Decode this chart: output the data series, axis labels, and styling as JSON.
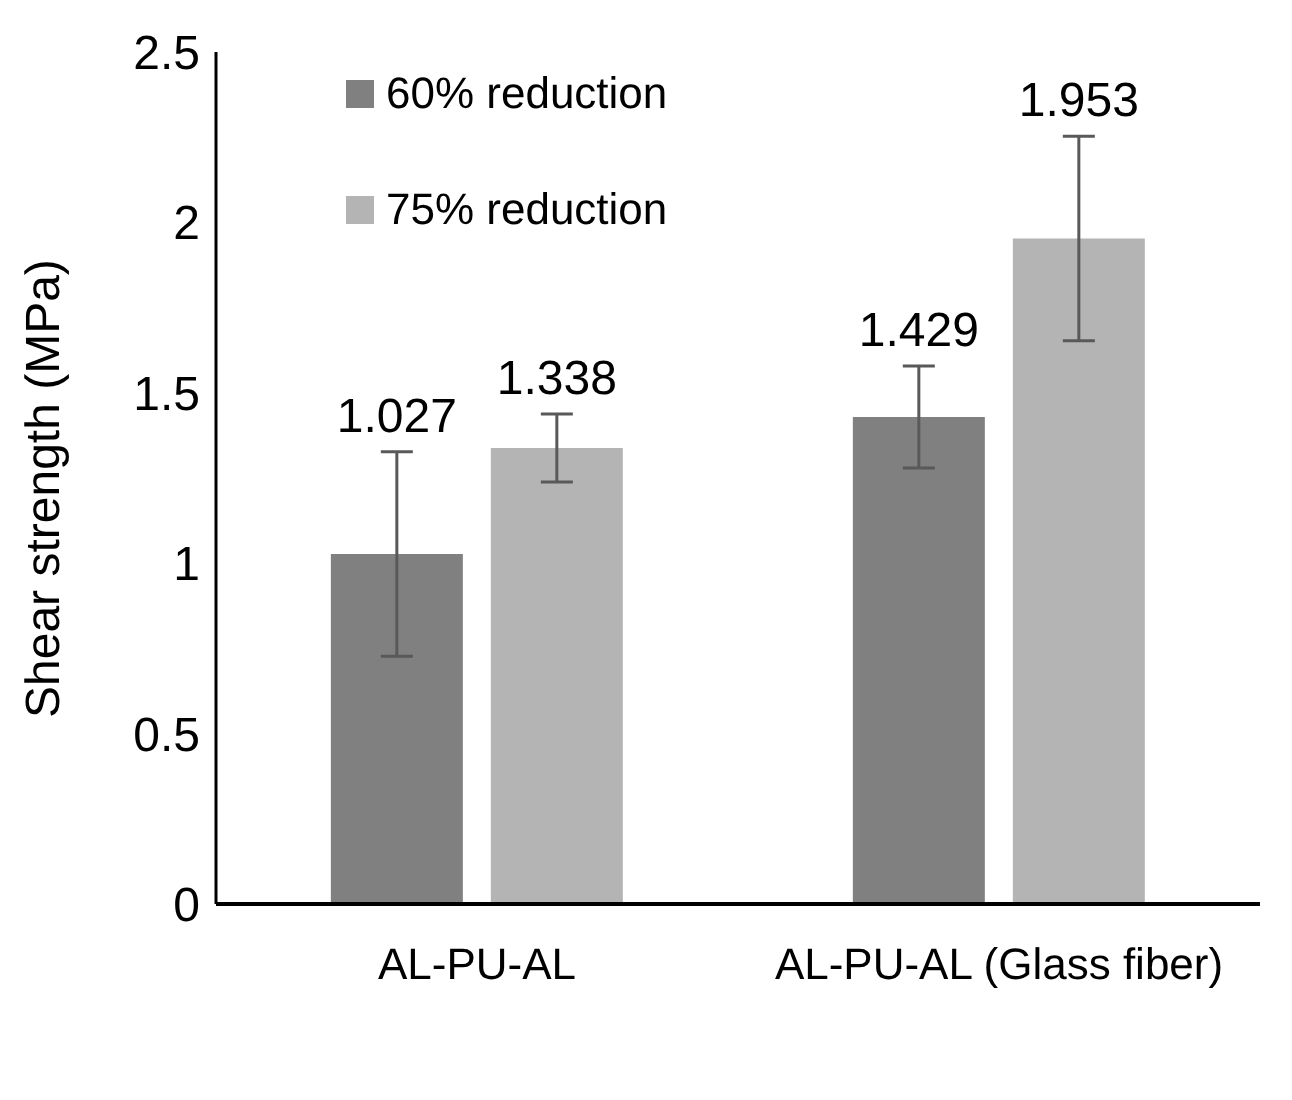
{
  "chart_data": {
    "type": "bar",
    "ylabel": "Shear strength (MPa)",
    "categories": [
      "AL-PU-AL",
      "AL-PU-AL (Glass fiber)"
    ],
    "series": [
      {
        "name": "60% reduction",
        "color": "#808080",
        "values": [
          1.027,
          1.429
        ],
        "errors": [
          0.3,
          0.15
        ]
      },
      {
        "name": "75% reduction",
        "color": "#b4b4b4",
        "values": [
          1.338,
          1.953
        ],
        "errors": [
          0.1,
          0.3
        ]
      }
    ],
    "ylim": [
      0,
      2.5
    ],
    "yticks": [
      0,
      0.5,
      1,
      1.5,
      2,
      2.5
    ],
    "grid": false,
    "legend": "top left",
    "data_labels": true
  }
}
